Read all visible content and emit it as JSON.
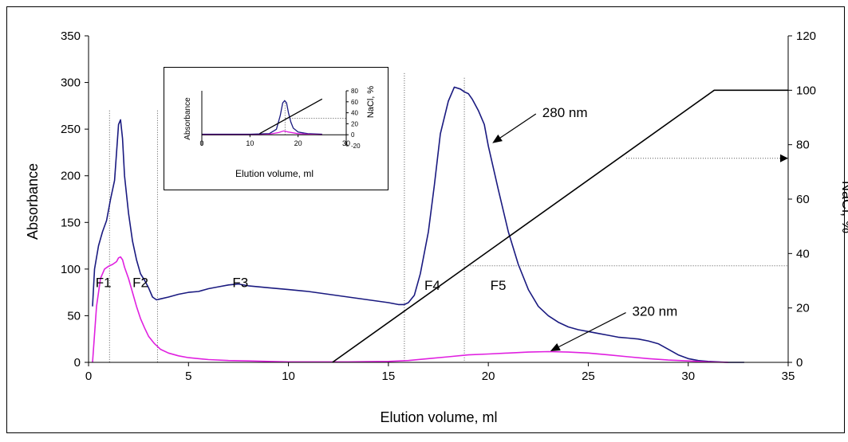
{
  "colors": {
    "absorbance_280": "#1a1a80",
    "absorbance_320": "#e020e0",
    "nacl": "#000000",
    "axis": "#000000",
    "guide": "#555555"
  },
  "chart_data": [
    {
      "type": "line",
      "title": "",
      "xlabel": "Elution volume, ml",
      "ylabel": "Absorbance",
      "y2label": "NaCl, %",
      "xlim": [
        0,
        35
      ],
      "ylim": [
        0,
        350
      ],
      "y2lim": [
        0,
        120
      ],
      "xticks": [
        "0",
        "5",
        "10",
        "15",
        "20",
        "25",
        "30",
        "35"
      ],
      "yticks": [
        "0",
        "50",
        "100",
        "150",
        "200",
        "250",
        "300",
        "350"
      ],
      "y2ticks": [
        "0",
        "20",
        "40",
        "60",
        "80",
        "100",
        "120"
      ],
      "grid": false,
      "series": [
        {
          "name": "",
          "axis": "left",
          "color_key": "absorbance_280",
          "x": [
            0.2,
            0.3,
            0.5,
            0.7,
            0.9,
            1.1,
            1.3,
            1.4,
            1.5,
            1.6,
            1.7,
            1.8,
            2.0,
            2.2,
            2.4,
            2.6,
            2.8,
            3.0,
            3.2,
            3.4,
            3.6,
            4.0,
            4.5,
            5.0,
            5.5,
            6.0,
            6.5,
            7.0,
            7.5,
            8.0,
            9.0,
            10.0,
            11.0,
            12.0,
            13.0,
            14.0,
            15.0,
            15.5,
            15.8,
            16.0,
            16.3,
            16.6,
            17.0,
            17.3,
            17.6,
            18.0,
            18.3,
            18.6,
            18.8,
            19.0,
            19.2,
            19.5,
            19.8,
            20.0,
            20.5,
            21.0,
            21.5,
            22.0,
            22.5,
            23.0,
            23.5,
            24.0,
            24.5,
            25.0,
            25.5,
            26.0,
            26.5,
            27.0,
            27.5,
            28.0,
            28.5,
            29.0,
            29.5,
            30.0,
            30.5,
            31.0,
            31.5,
            32.0,
            32.5,
            32.8
          ],
          "y": [
            60,
            100,
            125,
            140,
            152,
            175,
            195,
            225,
            255,
            260,
            240,
            200,
            160,
            130,
            110,
            95,
            88,
            80,
            70,
            67,
            68,
            70,
            73,
            75,
            76,
            79,
            81,
            83,
            84,
            82,
            80,
            78,
            76,
            73,
            70,
            67,
            64,
            62,
            62,
            64,
            72,
            95,
            140,
            190,
            245,
            280,
            295,
            293,
            290,
            288,
            282,
            270,
            255,
            232,
            185,
            140,
            105,
            78,
            60,
            50,
            43,
            38,
            35,
            33,
            31,
            29,
            27,
            26,
            25,
            23,
            20,
            14,
            8,
            4,
            2,
            1,
            0.5,
            0,
            0,
            0
          ]
        },
        {
          "name": "",
          "axis": "left",
          "color_key": "absorbance_320",
          "x": [
            0.2,
            0.4,
            0.6,
            0.8,
            1.0,
            1.2,
            1.4,
            1.5,
            1.6,
            1.7,
            1.8,
            2.0,
            2.2,
            2.4,
            2.6,
            2.8,
            3.0,
            3.3,
            3.6,
            4.0,
            4.5,
            5.0,
            6.0,
            7.0,
            8.0,
            9.0,
            10.0,
            11.0,
            12.0,
            13.0,
            14.0,
            15.0,
            16.0,
            17.0,
            18.0,
            19.0,
            20.0,
            21.0,
            22.0,
            23.0,
            24.0,
            25.0,
            26.0,
            27.0,
            28.0,
            29.0,
            30.0,
            31.0,
            32.0
          ],
          "y": [
            0,
            60,
            90,
            100,
            103,
            105,
            108,
            112,
            113,
            110,
            102,
            90,
            75,
            60,
            47,
            37,
            28,
            20,
            14,
            10,
            7,
            5,
            3,
            2,
            1.5,
            1,
            0.5,
            0.5,
            0.5,
            0.5,
            0.8,
            1,
            2,
            4,
            6,
            8,
            9,
            10,
            11,
            11.5,
            11,
            10,
            8,
            6,
            4,
            2.5,
            1.5,
            0.5,
            0
          ]
        },
        {
          "name": "",
          "axis": "right",
          "color_key": "nacl",
          "x": [
            12.2,
            31.3,
            35
          ],
          "y": [
            0,
            100,
            100
          ]
        }
      ],
      "annotations": [
        {
          "text": "280 nm",
          "x": 22.7,
          "y": 268,
          "arrow_to": [
            20.2,
            235
          ]
        },
        {
          "text": "320 nm",
          "x": 27.2,
          "y": 55,
          "arrow_to": [
            23.1,
            12
          ]
        },
        {
          "text": "F1",
          "x": 0.35,
          "y": 86
        },
        {
          "text": "F2",
          "x": 2.2,
          "y": 86
        },
        {
          "text": "F3",
          "x": 7.2,
          "y": 86
        },
        {
          "text": "F4",
          "x": 16.8,
          "y": 83
        },
        {
          "text": "F5",
          "x": 20.1,
          "y": 83
        }
      ],
      "guide_lines": [
        {
          "x": 1.05,
          "y_top": 270
        },
        {
          "x": 3.45,
          "y_top": 270
        },
        {
          "x": 15.8,
          "y_top": 310
        },
        {
          "x": 18.8,
          "y_top": 305
        }
      ],
      "reading_lines": [
        {
          "x_from": 26.9,
          "x_to": 35,
          "y2": 75,
          "arrowhead": true
        },
        {
          "x_from": 19.1,
          "x_to": 35,
          "y2": 35.5,
          "arrowhead": false
        }
      ]
    },
    {
      "type": "line",
      "title": "",
      "xlabel": "Elution volume, ml",
      "ylabel": "Absorbance",
      "y2label": "NaCl, %",
      "xlim": [
        0,
        30
      ],
      "ylim": [
        0,
        1
      ],
      "y2lim": [
        -20,
        80
      ],
      "xticks": [
        "0",
        "10",
        "20",
        "30"
      ],
      "y2ticks": [
        "-20",
        "0",
        "20",
        "40",
        "60",
        "80"
      ],
      "grid": false,
      "series": [
        {
          "name": "",
          "axis": "left",
          "color_key": "absorbance_280",
          "x": [
            0,
            10,
            14,
            15.5,
            16.3,
            16.8,
            17.2,
            17.6,
            18.0,
            18.5,
            19.0,
            20,
            22,
            25
          ],
          "y": [
            0.21,
            0.21,
            0.22,
            0.3,
            0.55,
            0.78,
            0.82,
            0.78,
            0.6,
            0.43,
            0.32,
            0.25,
            0.22,
            0.21
          ]
        },
        {
          "name": "",
          "axis": "left",
          "color_key": "absorbance_320",
          "x": [
            0,
            12,
            14,
            16,
            17,
            18,
            20,
            22,
            25
          ],
          "y": [
            0.2,
            0.2,
            0.21,
            0.24,
            0.27,
            0.25,
            0.22,
            0.21,
            0.2
          ]
        },
        {
          "name": "",
          "axis": "right",
          "color_key": "nacl",
          "x": [
            12,
            25
          ],
          "y": [
            2,
            65
          ]
        }
      ],
      "guide_lines": [
        {
          "x": 17.3,
          "y_top": 0.82
        }
      ],
      "reading_lines": [
        {
          "x_from": 17.3,
          "x_to": 30,
          "y2": 30
        }
      ]
    }
  ]
}
